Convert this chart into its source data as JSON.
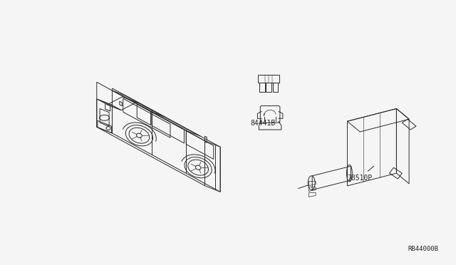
{
  "background_color": "#f5f5f5",
  "line_color": "#2a2a2a",
  "label_color": "#222222",
  "labels": {
    "part1": "84441B",
    "part2": "78510P",
    "ref": "RB44000B"
  },
  "figsize": [
    6.4,
    3.72
  ],
  "dpi": 100,
  "border_color": "#cccccc"
}
